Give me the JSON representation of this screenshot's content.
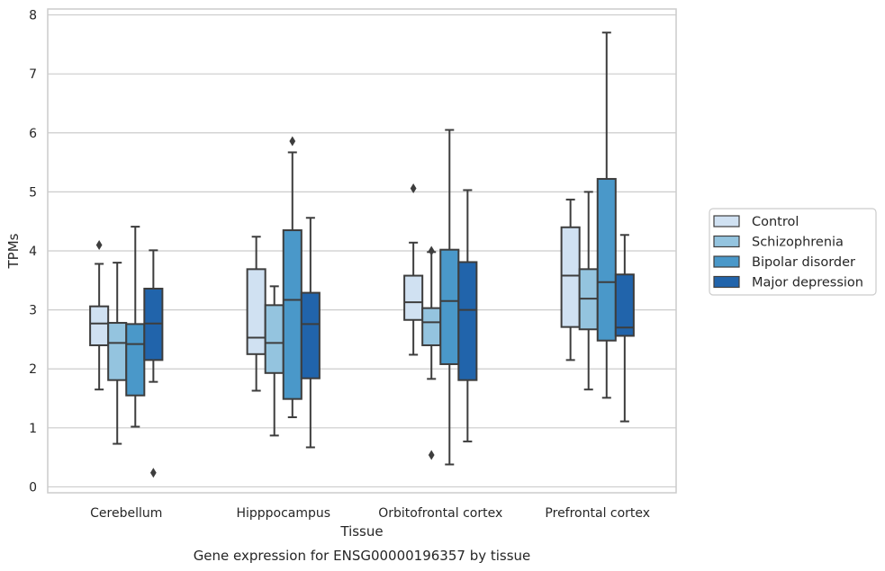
{
  "chart_data": {
    "type": "box",
    "title": "Gene expression for ENSG00000196357 by tissue",
    "xlabel": "Tissue",
    "ylabel": "TPMs",
    "ylim": [
      -0.1,
      8.1
    ],
    "yticks": [
      0,
      1,
      2,
      3,
      4,
      5,
      6,
      7,
      8
    ],
    "grid": true,
    "legend": "right",
    "categories": [
      "Cerebellum",
      "Hipppocampus",
      "Orbitofrontal cortex",
      "Prefrontal cortex"
    ],
    "series": [
      {
        "name": "Control",
        "color": "#d0e1f2",
        "boxes": [
          {
            "whislo": 1.65,
            "q1": 2.4,
            "med": 2.77,
            "q3": 3.06,
            "whishi": 3.78,
            "fliers": [
              4.1
            ]
          },
          {
            "whislo": 1.63,
            "q1": 2.25,
            "med": 2.53,
            "q3": 3.69,
            "whishi": 4.24,
            "fliers": []
          },
          {
            "whislo": 2.24,
            "q1": 2.83,
            "med": 3.13,
            "q3": 3.58,
            "whishi": 4.14,
            "fliers": [
              5.06
            ]
          },
          {
            "whislo": 2.15,
            "q1": 2.71,
            "med": 3.58,
            "q3": 4.4,
            "whishi": 4.87,
            "fliers": []
          }
        ]
      },
      {
        "name": "Schizophrenia",
        "color": "#94c4df",
        "boxes": [
          {
            "whislo": 0.73,
            "q1": 1.81,
            "med": 2.44,
            "q3": 2.78,
            "whishi": 3.8,
            "fliers": []
          },
          {
            "whislo": 0.87,
            "q1": 1.93,
            "med": 2.44,
            "q3": 3.08,
            "whishi": 3.4,
            "fliers": []
          },
          {
            "whislo": 1.83,
            "q1": 2.4,
            "med": 2.79,
            "q3": 3.03,
            "whishi": 3.98,
            "fliers": [
              4.0,
              0.54
            ]
          },
          {
            "whislo": 1.65,
            "q1": 2.67,
            "med": 3.19,
            "q3": 3.69,
            "whishi": 5.0,
            "fliers": []
          }
        ]
      },
      {
        "name": "Bipolar disorder",
        "color": "#4a98c9",
        "boxes": [
          {
            "whislo": 1.02,
            "q1": 1.55,
            "med": 2.42,
            "q3": 2.76,
            "whishi": 4.41,
            "fliers": []
          },
          {
            "whislo": 1.18,
            "q1": 1.49,
            "med": 3.17,
            "q3": 4.35,
            "whishi": 5.67,
            "fliers": [
              5.86
            ]
          },
          {
            "whislo": 0.38,
            "q1": 2.08,
            "med": 3.15,
            "q3": 4.02,
            "whishi": 6.05,
            "fliers": []
          },
          {
            "whislo": 1.51,
            "q1": 2.48,
            "med": 3.47,
            "q3": 5.22,
            "whishi": 7.7,
            "fliers": []
          }
        ]
      },
      {
        "name": "Major depression",
        "color": "#2164ab",
        "boxes": [
          {
            "whislo": 1.78,
            "q1": 2.15,
            "med": 2.77,
            "q3": 3.36,
            "whishi": 4.01,
            "fliers": [
              0.24
            ]
          },
          {
            "whislo": 0.67,
            "q1": 1.84,
            "med": 2.76,
            "q3": 3.29,
            "whishi": 4.56,
            "fliers": []
          },
          {
            "whislo": 0.77,
            "q1": 1.81,
            "med": 3.0,
            "q3": 3.81,
            "whishi": 5.03,
            "fliers": []
          },
          {
            "whislo": 1.11,
            "q1": 2.56,
            "med": 2.7,
            "q3": 3.6,
            "whishi": 4.27,
            "fliers": []
          }
        ]
      }
    ]
  }
}
